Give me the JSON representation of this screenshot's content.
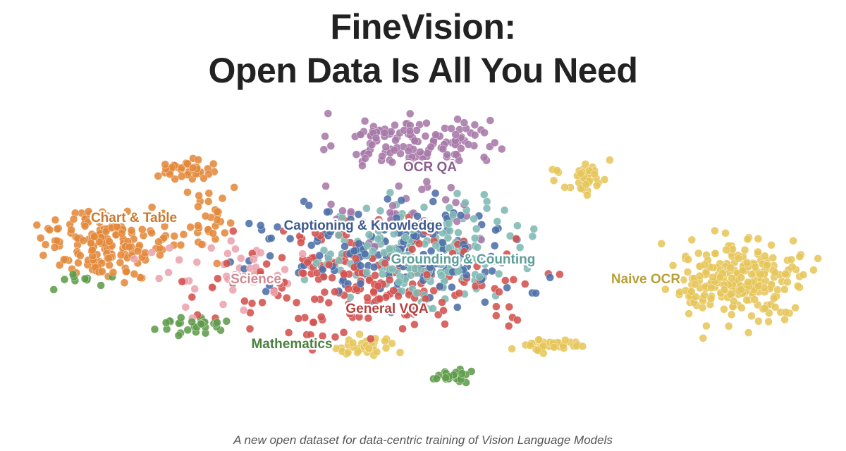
{
  "header": {
    "title_lines": [
      "FineVision:",
      "Open Data Is All You Need"
    ]
  },
  "clusters": [
    {
      "label": "OCR QA"
    },
    {
      "label": "Chart & Table"
    },
    {
      "label": "Captioning & Knowledge"
    },
    {
      "label": "Grounding & Counting"
    },
    {
      "label": "Science"
    },
    {
      "label": "Naive OCR"
    },
    {
      "label": "General VQA"
    },
    {
      "label": "Mathematics"
    }
  ],
  "footer": {
    "subtitle": "A new open dataset for data-centric training of Vision Language Models"
  }
}
